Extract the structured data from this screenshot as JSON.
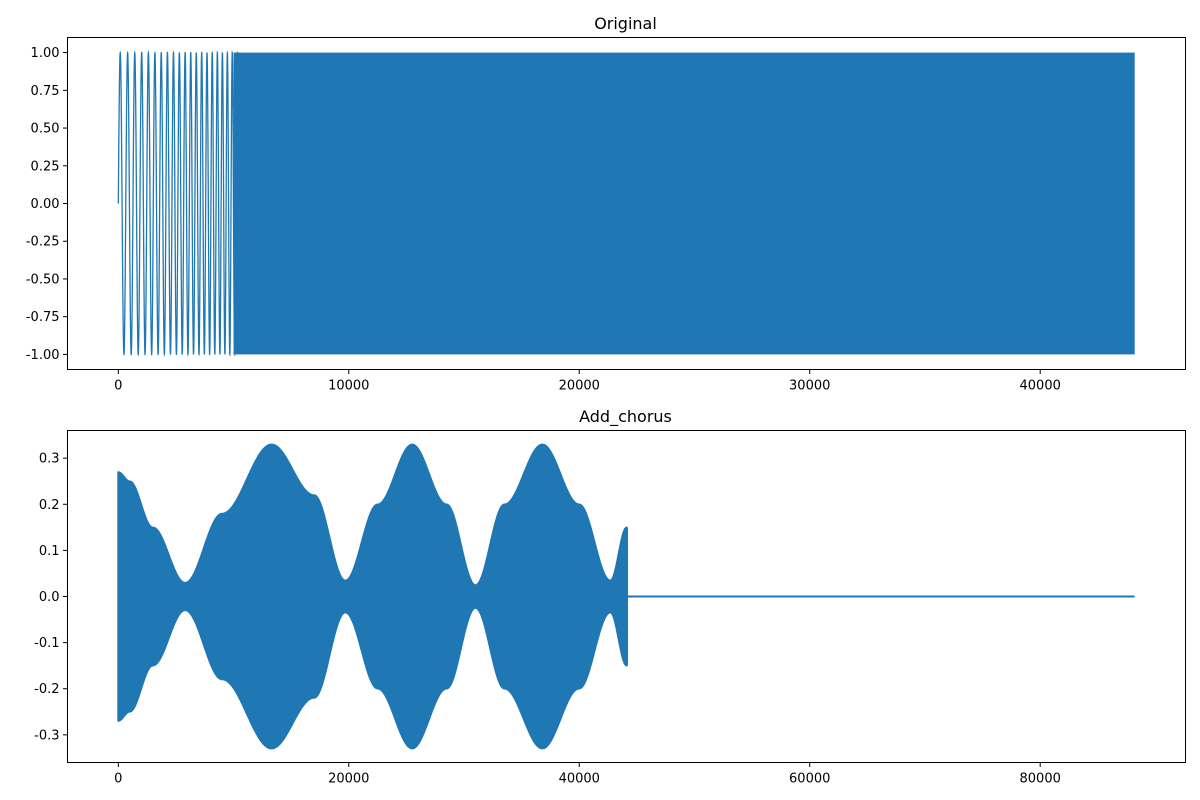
{
  "chart_data": [
    {
      "type": "line",
      "title": "Original",
      "xlabel": "",
      "ylabel": "",
      "xlim": [
        -2205,
        46305
      ],
      "ylim": [
        -1.1,
        1.1
      ],
      "x_ticks": [
        0,
        10000,
        20000,
        30000,
        40000
      ],
      "x_tick_labels": [
        "0",
        "10000",
        "20000",
        "30000",
        "40000"
      ],
      "y_ticks": [
        1.0,
        0.75,
        0.5,
        0.25,
        0.0,
        -0.25,
        -0.5,
        -0.75,
        -1.0
      ],
      "y_tick_labels": [
        "1.00",
        "0.75",
        "0.50",
        "0.25",
        "0.00",
        "-0.25",
        "-0.50",
        "-0.75",
        "-1.00"
      ],
      "grid": false,
      "series": [
        {
          "color": "#1f77b4",
          "description_points": {
            "x": [
              0,
              44100
            ],
            "amplitude": [
              1.0,
              1.0
            ]
          },
          "start_x": 0,
          "end_x": 44100,
          "amplitude": 1.0,
          "signal": "chirp"
        }
      ]
    },
    {
      "type": "line",
      "title": "Add_chorus",
      "xlabel": "",
      "ylabel": "",
      "xlim": [
        -4410,
        92610
      ],
      "ylim": [
        -0.36,
        0.36
      ],
      "x_ticks": [
        0,
        20000,
        40000,
        60000,
        80000
      ],
      "x_tick_labels": [
        "0",
        "20000",
        "40000",
        "60000",
        "80000"
      ],
      "y_ticks": [
        0.3,
        0.2,
        0.1,
        0.0,
        -0.1,
        -0.2,
        -0.3
      ],
      "y_tick_labels": [
        "0.3",
        "0.2",
        "0.1",
        "0.0",
        "-0.1",
        "-0.2",
        "-0.3"
      ],
      "grid": false,
      "series": [
        {
          "color": "#1f77b4",
          "envelope": {
            "x": [
              0,
              1000,
              3000,
              5800,
              9000,
              13300,
              17000,
              19700,
              22500,
              25500,
              28500,
              31000,
              33500,
              36800,
              40000,
              42700,
              44100
            ],
            "amplitude": [
              0.27,
              0.25,
              0.15,
              0.03,
              0.18,
              0.33,
              0.22,
              0.035,
              0.2,
              0.33,
              0.2,
              0.025,
              0.2,
              0.33,
              0.2,
              0.035,
              0.15
            ]
          },
          "signal_end_x": 44100,
          "silence_x": [
            44100,
            88200
          ],
          "silence_value": 0.0
        }
      ]
    }
  ]
}
